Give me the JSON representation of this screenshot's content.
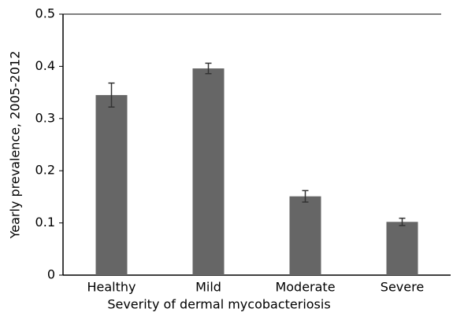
{
  "chart_data": {
    "type": "bar",
    "x_label": "Severity of dermal mycobacteriosis",
    "y_label": "Yearly prevalence, 2005-2012",
    "categories": [
      "Healthy",
      "Mild",
      "Moderate",
      "Severe"
    ],
    "values": [
      0.345,
      0.396,
      0.151,
      0.102
    ],
    "errors": [
      0.023,
      0.01,
      0.011,
      0.007
    ],
    "color": "#666666",
    "ylim": [
      0,
      0.5
    ],
    "yticks": [
      0,
      0.1,
      0.2,
      0.3,
      0.4,
      0.5
    ]
  }
}
